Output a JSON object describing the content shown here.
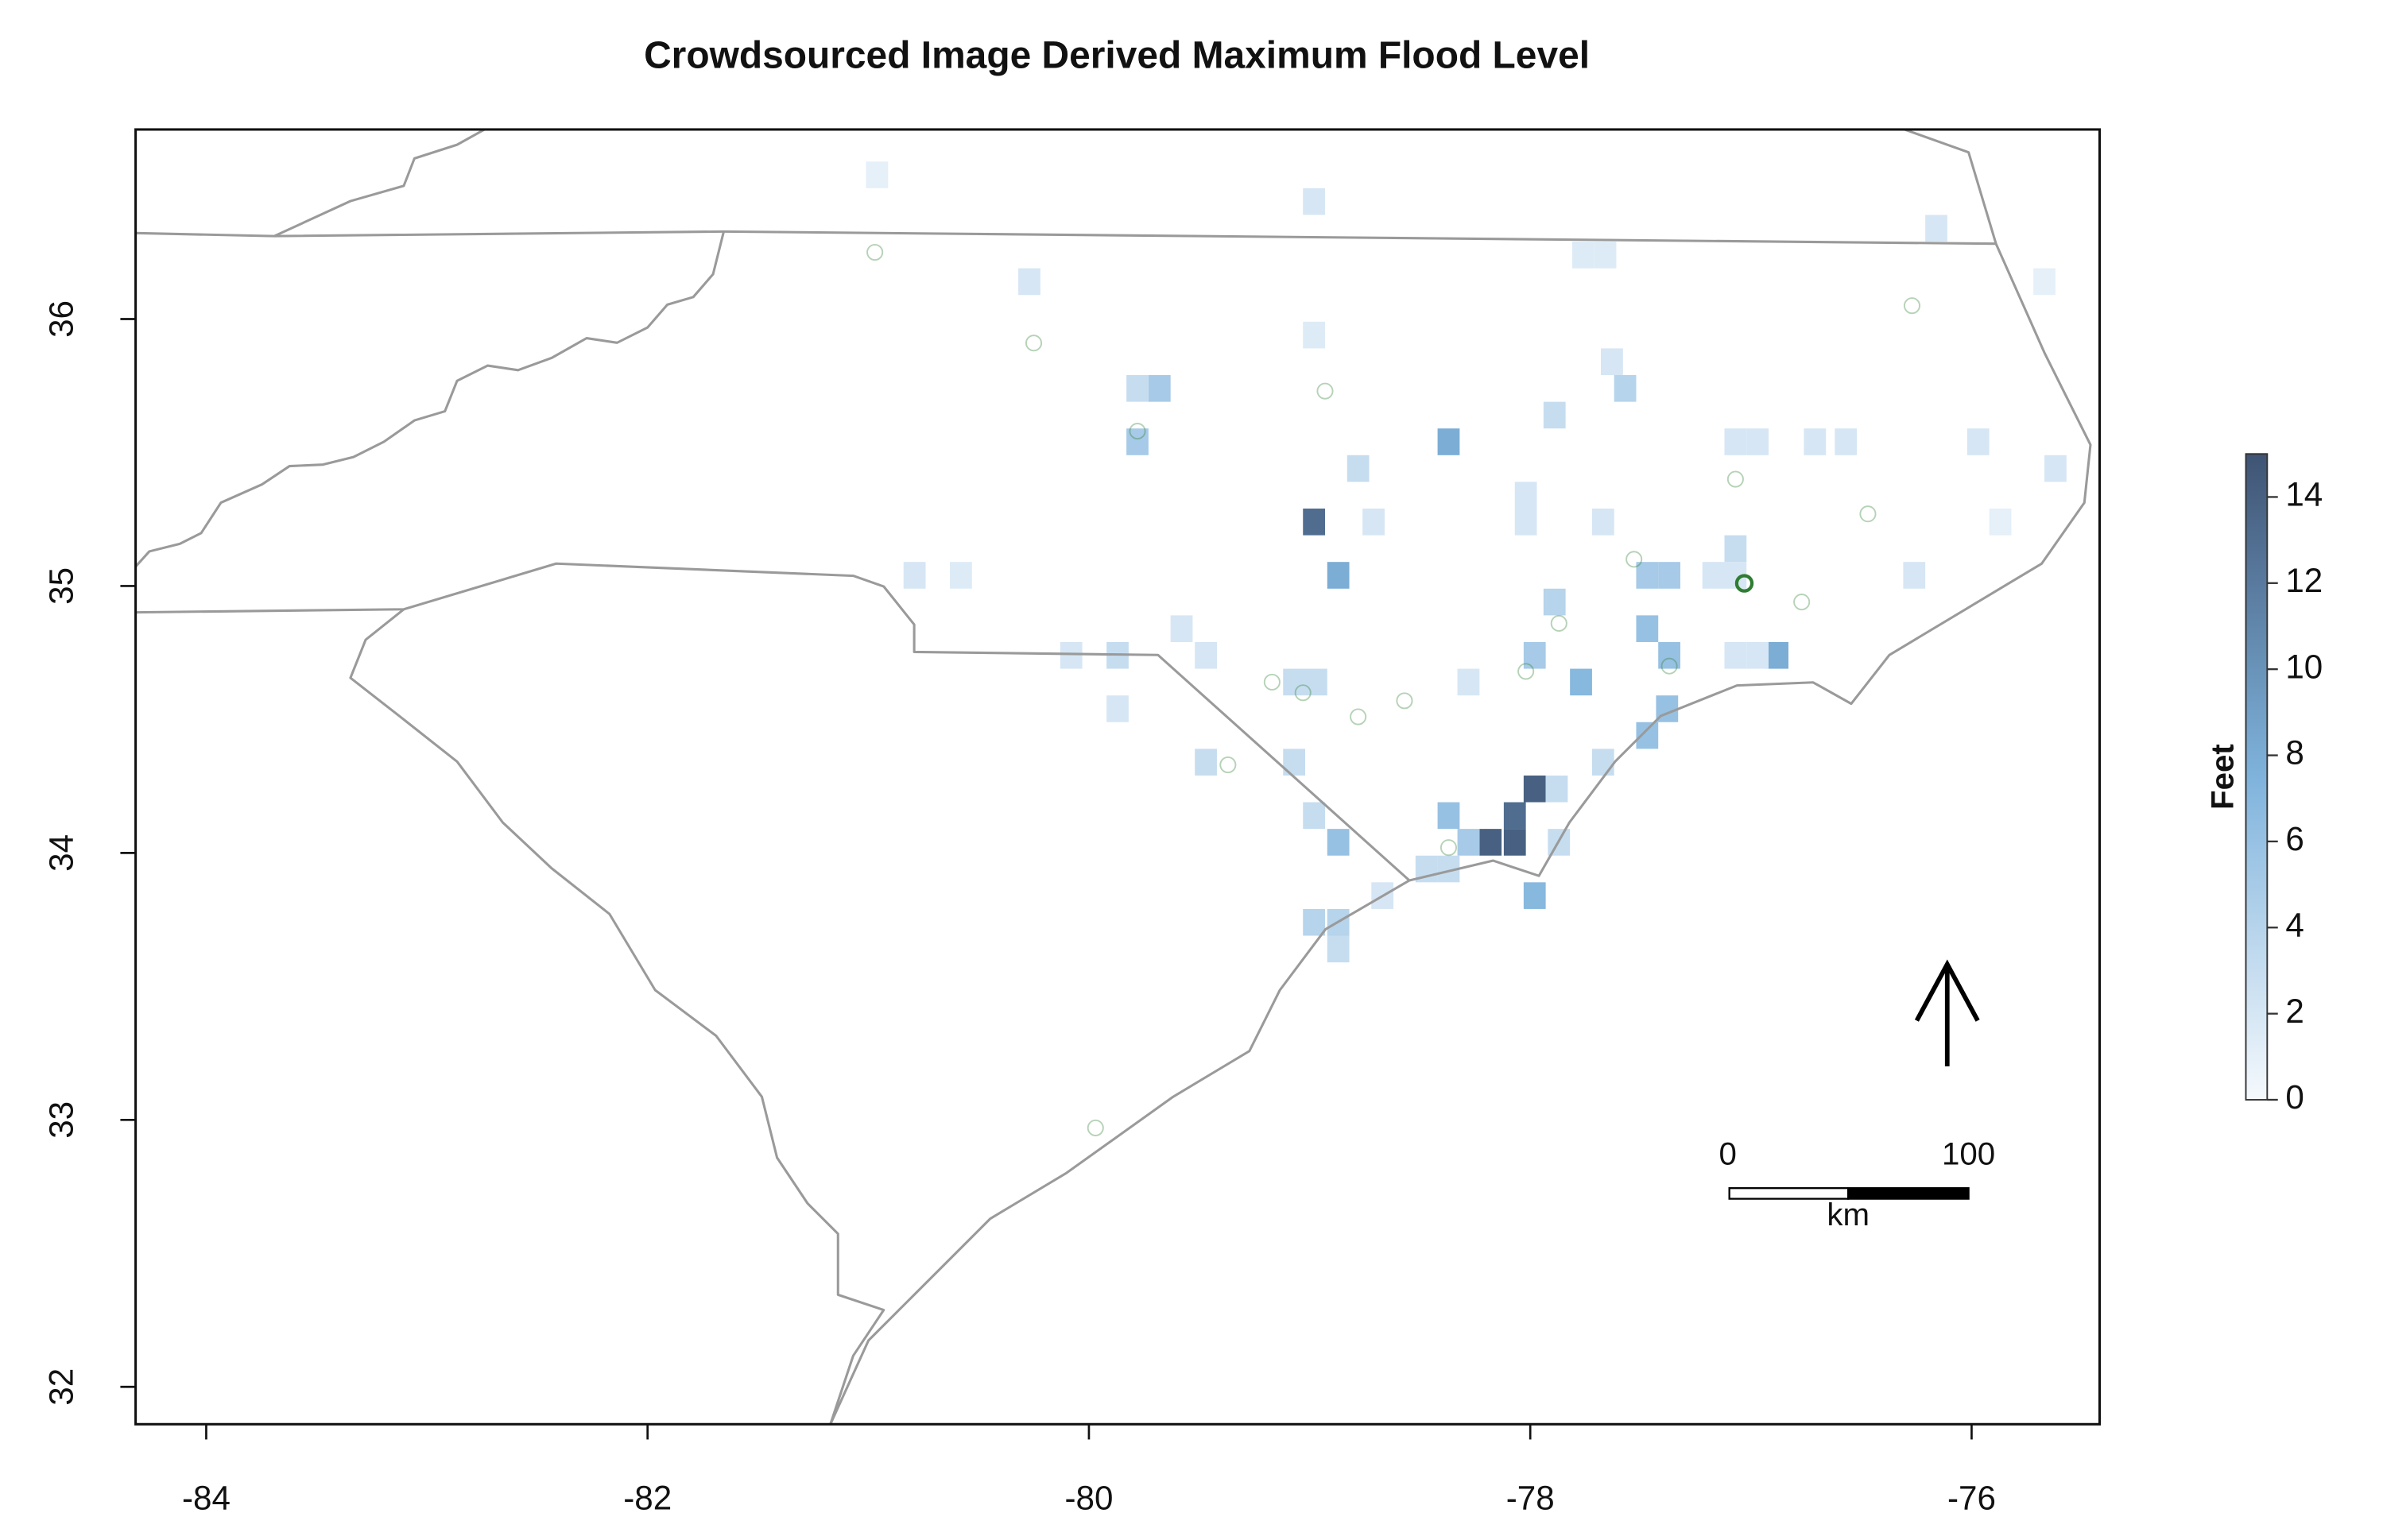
{
  "chart_data": {
    "type": "raster-map",
    "title": "Crowdsourced Image Derived Maximum Flood Level",
    "xlim": [
      -84.32,
      -75.42
    ],
    "ylim": [
      31.86,
      36.71
    ],
    "xticks": [
      -84,
      -82,
      -80,
      -78,
      -76
    ],
    "yticks": [
      32,
      33,
      34,
      35,
      36
    ],
    "cell_size": 0.1,
    "palette": [
      "#f5f9fd",
      "#7fb3dc",
      "#3f5474"
    ],
    "cells": {
      "lon": [
        -78.98,
        -80.96,
        -80.27,
        -77.76,
        -77.66,
        -78.98,
        -77.63,
        -79.68,
        -79.78,
        -79.78,
        -78.37,
        -77.57,
        -77.89,
        -78.78,
        -78.98,
        -78.71,
        -78.02,
        -78.02,
        -77.67,
        -77.07,
        -76.97,
        -76.71,
        -76.57,
        -75.97,
        -77.07,
        -77.47,
        -77.37,
        -77.17,
        -77.07,
        -76.26,
        -78.87,
        -80.58,
        -80.79,
        -77.47,
        -77.89,
        -77.77,
        -77.37,
        -76.88,
        -77.07,
        -76.97,
        -79.58,
        -79.47,
        -79.87,
        -80.08,
        -79.87,
        -79.07,
        -78.97,
        -78.28,
        -77.98,
        -77.38,
        -77.47,
        -77.67,
        -79.47,
        -79.07,
        -77.98,
        -77.88,
        -78.98,
        -78.37,
        -78.07,
        -78.18,
        -78.07,
        -78.28,
        -78.87,
        -77.87,
        -78.37,
        -78.47,
        -77.98,
        -78.98,
        -78.87,
        -78.87,
        -78.67,
        -76.16,
        -75.67,
        -75.62,
        -75.87
      ],
      "lat": [
        36.44,
        36.54,
        36.14,
        36.24,
        36.24,
        35.94,
        35.84,
        35.74,
        35.74,
        35.54,
        35.54,
        35.74,
        35.64,
        35.44,
        35.24,
        35.24,
        35.34,
        35.24,
        35.24,
        35.54,
        35.54,
        35.54,
        35.54,
        35.54,
        35.14,
        35.04,
        35.04,
        35.04,
        35.04,
        35.04,
        35.04,
        35.04,
        35.04,
        34.84,
        34.94,
        34.64,
        34.74,
        34.74,
        34.74,
        34.74,
        34.84,
        34.74,
        34.74,
        34.74,
        34.54,
        34.64,
        34.64,
        34.64,
        34.74,
        34.54,
        34.44,
        34.34,
        34.34,
        34.34,
        34.24,
        34.24,
        34.14,
        34.14,
        34.14,
        34.04,
        34.04,
        34.04,
        34.04,
        34.04,
        33.94,
        33.94,
        33.84,
        33.74,
        33.74,
        33.64,
        33.84,
        36.34,
        36.14,
        35.44,
        35.24
      ],
      "values": [
        2,
        1,
        2,
        1.5,
        1.5,
        1.5,
        2,
        5,
        3,
        5,
        8,
        4,
        3,
        3,
        13,
        2,
        2,
        2,
        2,
        2,
        2,
        2,
        2,
        2,
        3,
        5,
        5,
        2,
        2,
        2,
        8,
        1.5,
        2,
        6,
        4,
        7,
        6,
        8,
        2,
        2,
        2,
        2,
        3,
        2,
        2,
        3,
        3,
        2,
        5,
        6,
        6,
        3,
        3,
        3,
        14,
        3,
        3,
        6,
        13,
        14,
        14,
        5,
        6,
        3,
        3,
        3,
        7,
        4,
        4,
        3,
        2,
        2,
        1,
        2,
        1
      ]
    },
    "points": {
      "lon": [
        -77.03,
        -78.93,
        -79.17,
        -78.78,
        -77.07,
        -77.53,
        -77.37,
        -78.57,
        -78.02,
        -76.77,
        -79.37,
        -80.97,
        -79.78,
        -78.37,
        -79.03,
        -77.87,
        -76.47,
        -79.97,
        -80.25,
        -76.27
      ],
      "lat": [
        35.01,
        35.73,
        34.64,
        34.51,
        35.4,
        35.1,
        34.7,
        34.57,
        34.68,
        34.94,
        34.33,
        36.25,
        35.58,
        34.02,
        34.6,
        34.86,
        35.27,
        32.97,
        35.91,
        36.05
      ],
      "color": "#2e7d32"
    },
    "colorbar": {
      "label": "Feet",
      "lim": [
        0,
        15
      ],
      "ticks": [
        0,
        2,
        4,
        6,
        8,
        10,
        12,
        14
      ]
    },
    "scale_bar": {
      "ticks": [
        0,
        100
      ],
      "unit": "km"
    }
  }
}
